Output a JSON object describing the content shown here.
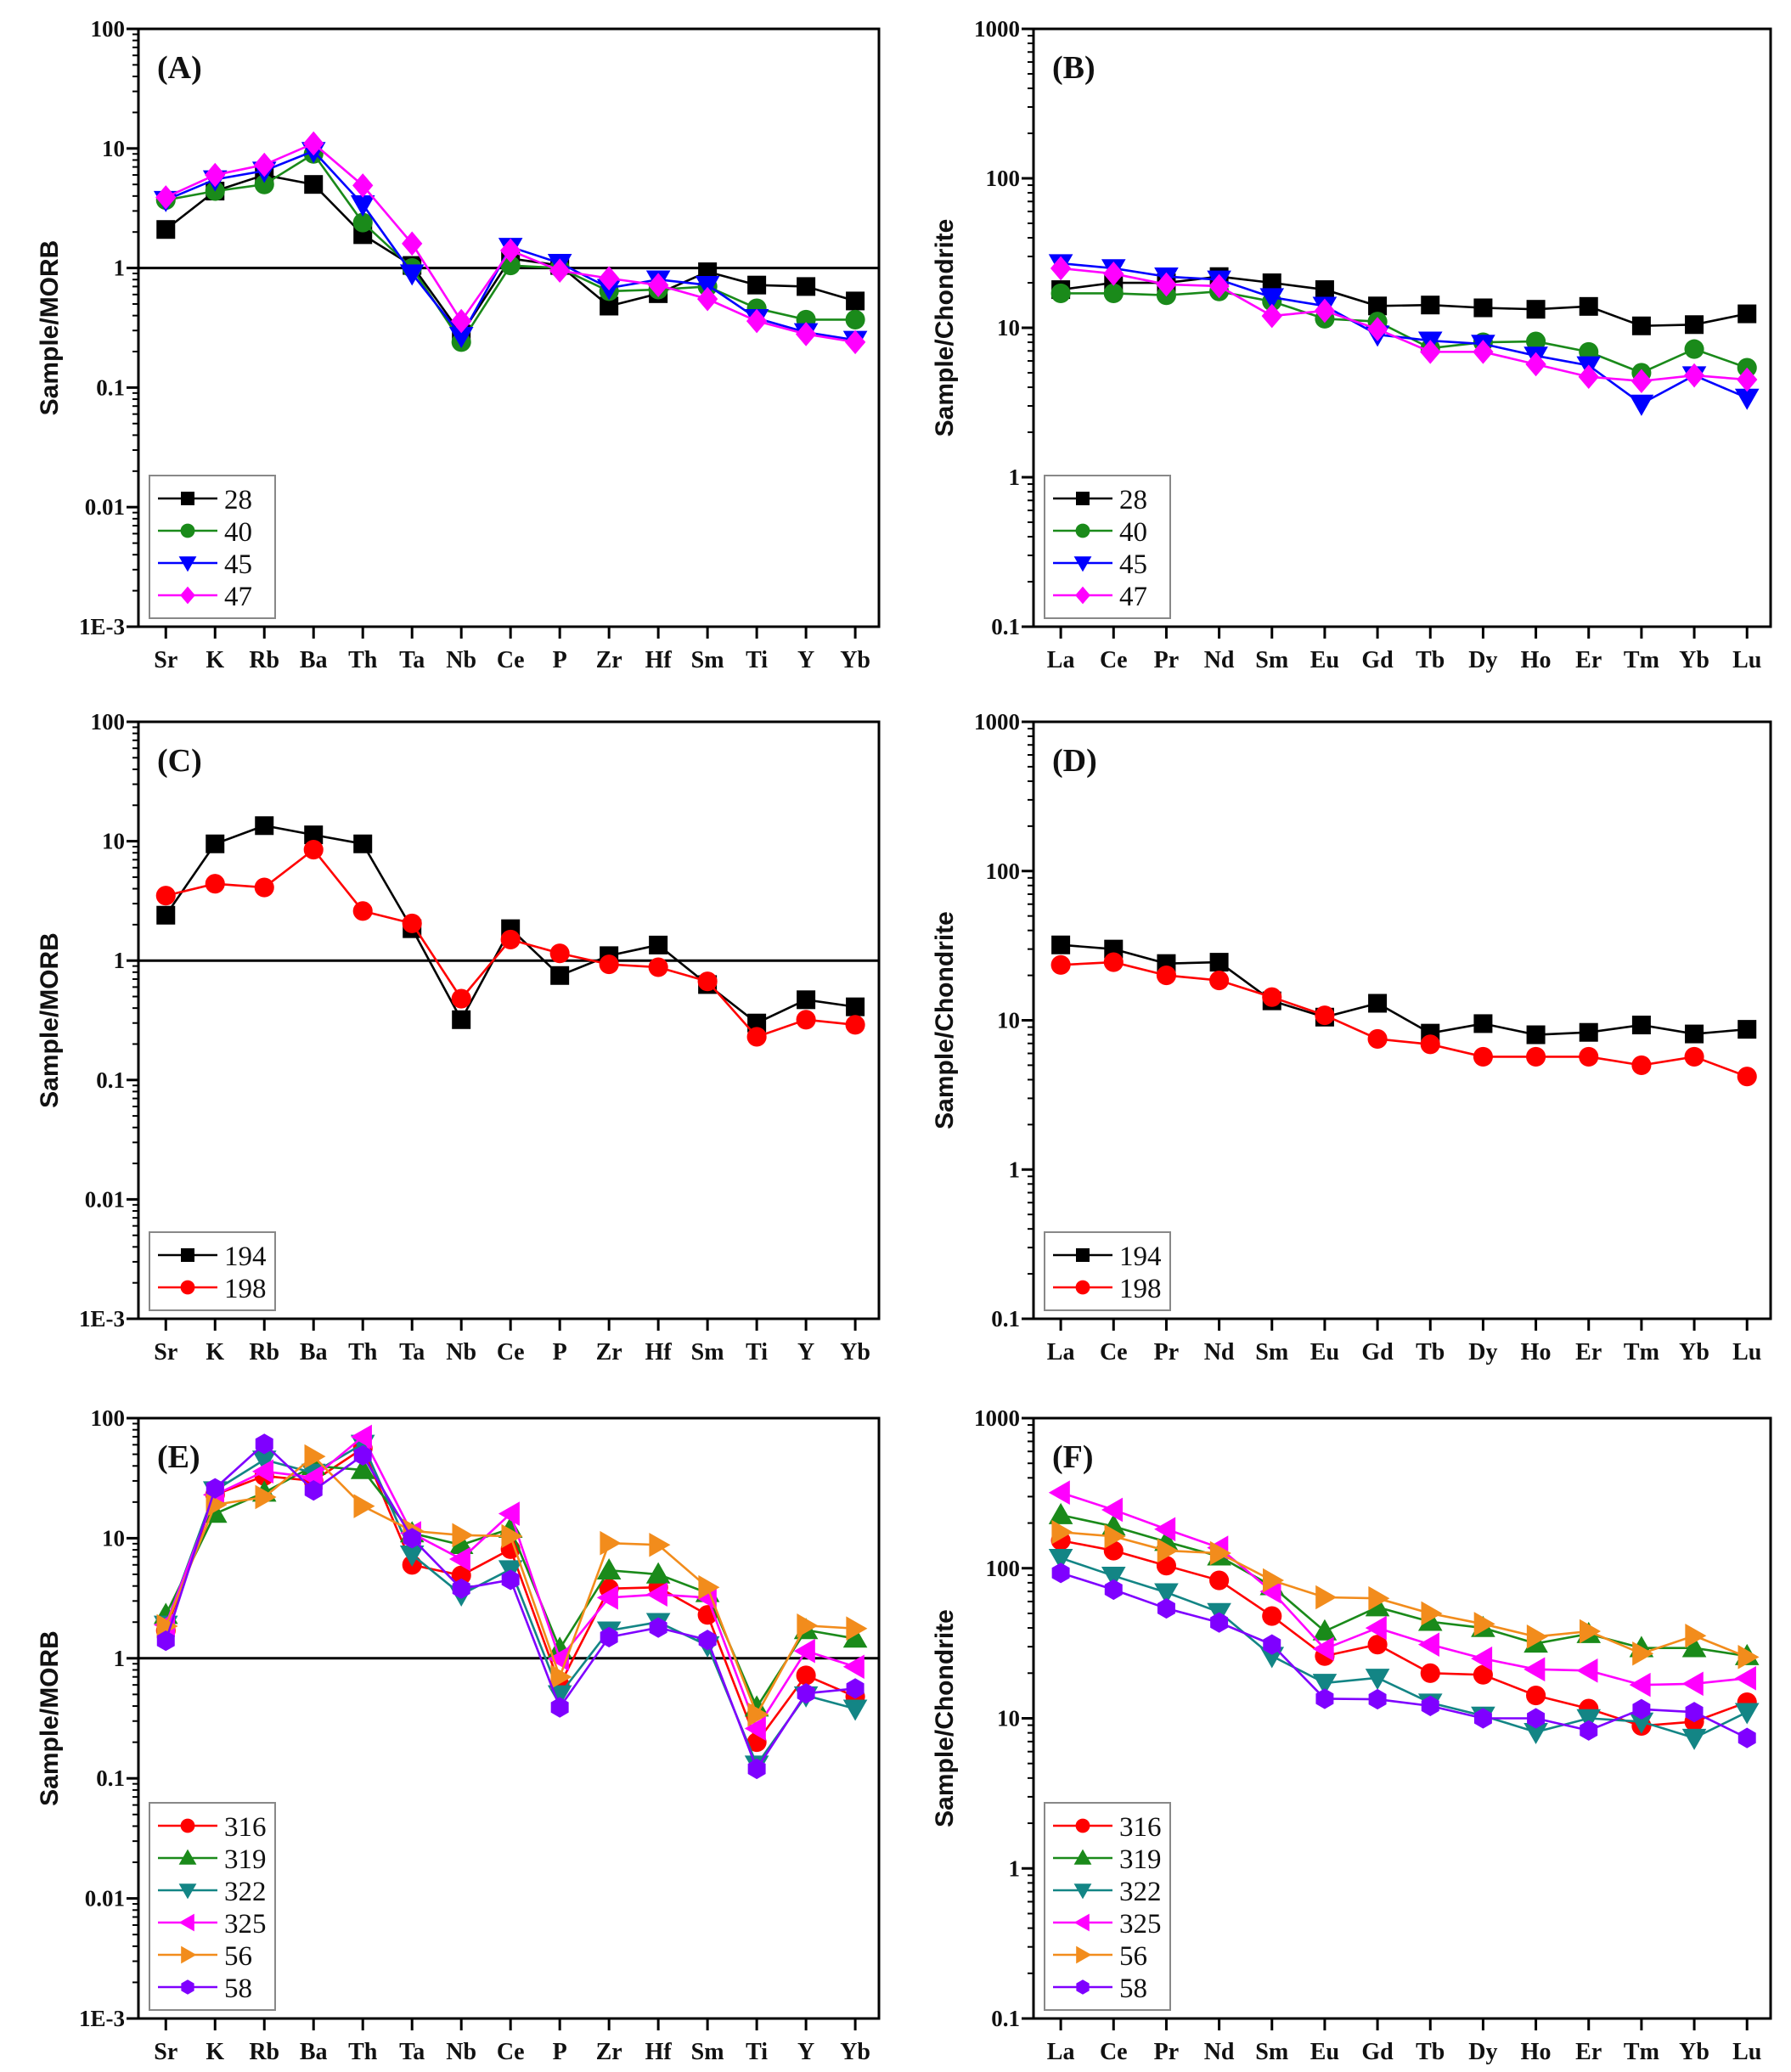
{
  "chart_data": [
    {
      "type": "line",
      "panel": "(A)",
      "ylabel": "Sample/MORB",
      "yscale": "log",
      "ylim": [
        0.001,
        100
      ],
      "yticks": [
        "1E-3",
        "0.01",
        "0.1",
        "1",
        "10",
        "100"
      ],
      "reference_line": 1,
      "categories": [
        "Sr",
        "K",
        "Rb",
        "Ba",
        "Th",
        "Ta",
        "Nb",
        "Ce",
        "P",
        "Zr",
        "Hf",
        "Sm",
        "Ti",
        "Y",
        "Yb"
      ],
      "legend": "bottom-left",
      "series": [
        {
          "name": "28",
          "color": "#000000",
          "marker": "square",
          "values": [
            2.1,
            4.4,
            6.0,
            5.0,
            1.9,
            1.05,
            0.28,
            1.2,
            1.05,
            0.48,
            0.61,
            0.93,
            0.72,
            0.7,
            0.53
          ]
        },
        {
          "name": "40",
          "color": "#1a8a1a",
          "marker": "circle",
          "values": [
            3.7,
            4.4,
            5.0,
            9.0,
            2.4,
            1.0,
            0.24,
            1.05,
            1.0,
            0.64,
            0.66,
            0.7,
            0.46,
            0.37,
            0.37
          ]
        },
        {
          "name": "45",
          "color": "#0000ff",
          "marker": "triangle-down",
          "values": [
            3.7,
            5.5,
            6.5,
            9.5,
            3.4,
            0.9,
            0.27,
            1.5,
            1.1,
            0.68,
            0.8,
            0.72,
            0.38,
            0.29,
            0.25
          ]
        },
        {
          "name": "47",
          "color": "#ff00ff",
          "marker": "diamond",
          "values": [
            3.9,
            6.0,
            7.3,
            11,
            4.9,
            1.6,
            0.36,
            1.4,
            0.95,
            0.82,
            0.72,
            0.55,
            0.36,
            0.28,
            0.24
          ]
        }
      ]
    },
    {
      "type": "line",
      "panel": "(B)",
      "ylabel": "Sample/Chondrite",
      "yscale": "log",
      "ylim": [
        0.1,
        1000
      ],
      "yticks": [
        "0.1",
        "1",
        "10",
        "100",
        "1000"
      ],
      "categories": [
        "La",
        "Ce",
        "Pr",
        "Nd",
        "Sm",
        "Eu",
        "Gd",
        "Tb",
        "Dy",
        "Ho",
        "Er",
        "Tm",
        "Yb",
        "Lu"
      ],
      "legend": "bottom-left",
      "series": [
        {
          "name": "28",
          "color": "#000000",
          "marker": "square",
          "values": [
            18,
            20,
            20,
            22,
            20,
            18,
            14,
            14.2,
            13.6,
            13.3,
            13.9,
            10.3,
            10.5,
            12.4
          ]
        },
        {
          "name": "40",
          "color": "#1a8a1a",
          "marker": "circle",
          "values": [
            17,
            17,
            16.5,
            17.5,
            15,
            11.5,
            11,
            7.3,
            8.0,
            8.1,
            6.9,
            5.0,
            7.2,
            5.4
          ]
        },
        {
          "name": "45",
          "color": "#0000ff",
          "marker": "triangle-down",
          "values": [
            27,
            25,
            22,
            21,
            16,
            14,
            9,
            8.2,
            7.8,
            6.5,
            5.6,
            3.1,
            4.8,
            3.4
          ]
        },
        {
          "name": "47",
          "color": "#ff00ff",
          "marker": "diamond",
          "values": [
            25,
            23,
            19.5,
            19,
            12,
            13,
            9.8,
            6.9,
            6.9,
            5.7,
            4.7,
            4.4,
            4.8,
            4.5
          ]
        }
      ]
    },
    {
      "type": "line",
      "panel": "(C)",
      "ylabel": "Sample/MORB",
      "yscale": "log",
      "ylim": [
        0.001,
        100
      ],
      "yticks": [
        "1E-3",
        "0.01",
        "0.1",
        "1",
        "10",
        "100"
      ],
      "reference_line": 1,
      "categories": [
        "Sr",
        "K",
        "Rb",
        "Ba",
        "Th",
        "Ta",
        "Nb",
        "Ce",
        "P",
        "Zr",
        "Hf",
        "Sm",
        "Ti",
        "Y",
        "Yb"
      ],
      "legend": "bottom-left",
      "series": [
        {
          "name": "194",
          "color": "#000000",
          "marker": "square",
          "values": [
            2.4,
            9.5,
            13.5,
            11.3,
            9.5,
            1.85,
            0.32,
            1.85,
            0.75,
            1.1,
            1.35,
            0.63,
            0.3,
            0.47,
            0.41
          ]
        },
        {
          "name": "198",
          "color": "#ff0000",
          "marker": "circle",
          "values": [
            3.5,
            4.4,
            4.1,
            8.5,
            2.6,
            2.05,
            0.48,
            1.5,
            1.15,
            0.93,
            0.88,
            0.67,
            0.23,
            0.32,
            0.29
          ]
        }
      ]
    },
    {
      "type": "line",
      "panel": "(D)",
      "ylabel": "Sample/Chondrite",
      "yscale": "log",
      "ylim": [
        0.1,
        1000
      ],
      "yticks": [
        "0.1",
        "1",
        "10",
        "100",
        "1000"
      ],
      "categories": [
        "La",
        "Ce",
        "Pr",
        "Nd",
        "Sm",
        "Eu",
        "Gd",
        "Tb",
        "Dy",
        "Ho",
        "Er",
        "Tm",
        "Yb",
        "Lu"
      ],
      "legend": "bottom-left",
      "series": [
        {
          "name": "194",
          "color": "#000000",
          "marker": "square",
          "values": [
            32,
            30,
            24,
            24.5,
            13.5,
            10.5,
            13,
            8.2,
            9.5,
            8.0,
            8.3,
            9.3,
            8.1,
            8.7
          ]
        },
        {
          "name": "198",
          "color": "#ff0000",
          "marker": "circle",
          "values": [
            23.5,
            24.5,
            20,
            18.5,
            14.3,
            10.8,
            7.5,
            6.9,
            5.7,
            5.7,
            5.7,
            5.0,
            5.7,
            4.2
          ]
        }
      ]
    },
    {
      "type": "line",
      "panel": "(E)",
      "ylabel": "Sample/MORB",
      "yscale": "log",
      "ylim": [
        0.001,
        100
      ],
      "yticks": [
        "1E-3",
        "0.01",
        "0.1",
        "1",
        "10",
        "100"
      ],
      "reference_line": 1,
      "categories": [
        "Sr",
        "K",
        "Rb",
        "Ba",
        "Th",
        "Ta",
        "Nb",
        "Ce",
        "P",
        "Zr",
        "Hf",
        "Sm",
        "Ti",
        "Y",
        "Yb"
      ],
      "legend": "bottom-left",
      "series": [
        {
          "name": "316",
          "color": "#ff0000",
          "marker": "circle",
          "values": [
            1.7,
            23,
            33,
            30,
            56,
            6.0,
            4.9,
            8.1,
            0.6,
            3.8,
            3.9,
            2.3,
            0.2,
            0.72,
            0.48
          ]
        },
        {
          "name": "319",
          "color": "#1a8a1a",
          "marker": "triangle-up",
          "values": [
            2.3,
            16,
            24,
            40,
            37,
            11,
            8.8,
            12,
            1.2,
            5.4,
            5.0,
            3.5,
            0.39,
            1.72,
            1.46
          ]
        },
        {
          "name": "322",
          "color": "#138585",
          "marker": "triangle-down",
          "values": [
            1.9,
            25,
            45,
            35,
            61,
            7.3,
            3.4,
            5.5,
            0.5,
            1.7,
            2.0,
            1.28,
            0.13,
            0.49,
            0.38
          ]
        },
        {
          "name": "325",
          "color": "#ff00ff",
          "marker": "triangle-left",
          "values": [
            1.9,
            23,
            36,
            32,
            70,
            11,
            6.7,
            16,
            0.99,
            3.2,
            3.4,
            3.2,
            0.26,
            1.15,
            0.85
          ]
        },
        {
          "name": "56",
          "color": "#f28c1c",
          "marker": "triangle-right",
          "values": [
            1.85,
            19,
            22,
            48,
            18.5,
            11.5,
            10.6,
            10.4,
            0.7,
            9.1,
            8.8,
            3.9,
            0.34,
            1.87,
            1.77
          ]
        },
        {
          "name": "58",
          "color": "#7f00ff",
          "marker": "hexagon",
          "values": [
            1.4,
            26,
            61,
            25,
            49,
            10,
            3.8,
            4.5,
            0.39,
            1.5,
            1.8,
            1.42,
            0.12,
            0.51,
            0.56
          ]
        }
      ]
    },
    {
      "type": "line",
      "panel": "(F)",
      "ylabel": "Sample/Chondrite",
      "yscale": "log",
      "ylim": [
        0.1,
        1000
      ],
      "yticks": [
        "0.1",
        "1",
        "10",
        "100",
        "1000"
      ],
      "categories": [
        "La",
        "Ce",
        "Pr",
        "Nd",
        "Sm",
        "Eu",
        "Gd",
        "Tb",
        "Dy",
        "Ho",
        "Er",
        "Tm",
        "Yb",
        "Lu"
      ],
      "legend": "bottom-left",
      "series": [
        {
          "name": "316",
          "color": "#ff0000",
          "marker": "circle",
          "values": [
            153,
            131,
            104,
            83,
            48,
            26,
            31,
            20,
            19.5,
            14.2,
            11.6,
            8.9,
            9.5,
            12.8
          ]
        },
        {
          "name": "319",
          "color": "#1a8a1a",
          "marker": "triangle-up",
          "values": [
            226,
            190,
            150,
            120,
            76,
            38,
            55,
            44,
            40,
            31.5,
            36.5,
            29.4,
            29.4,
            26
          ]
        },
        {
          "name": "322",
          "color": "#138585",
          "marker": "triangle-down",
          "values": [
            117,
            89,
            69,
            51,
            26,
            17.2,
            18.6,
            12.7,
            10.4,
            8.1,
            10,
            9.5,
            7.4,
            11
          ]
        },
        {
          "name": "325",
          "color": "#ff00ff",
          "marker": "triangle-left",
          "values": [
            319,
            245,
            182,
            137,
            70,
            29,
            40,
            31,
            25,
            21.2,
            20.8,
            16.7,
            17,
            18.5
          ]
        },
        {
          "name": "56",
          "color": "#f28c1c",
          "marker": "triangle-right",
          "values": [
            174,
            163,
            131,
            126,
            83,
            64,
            63,
            50,
            42.5,
            35,
            38,
            27,
            35.5,
            25.6
          ]
        },
        {
          "name": "58",
          "color": "#7f00ff",
          "marker": "hexagon",
          "values": [
            93,
            72,
            54,
            43.5,
            31,
            13.5,
            13.4,
            12.1,
            10,
            10,
            8.3,
            11.5,
            11,
            7.4
          ]
        }
      ]
    }
  ]
}
